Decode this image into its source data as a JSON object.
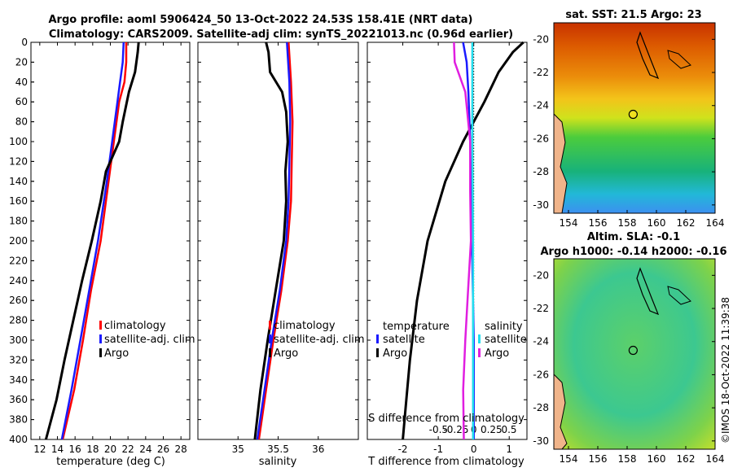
{
  "title_line1": "Argo profile: aoml 5906424_50 13-Oct-2022 24.53S 158.41E (NRT data)",
  "title_line2": "Climatology: CARS2009. Satellite-adj clim: synTS_20221013.nc (0.96d earlier)",
  "watermark": "©IMOS 18-Oct-2022 11:39:38",
  "colors": {
    "clim": "#ff0000",
    "sat": "#1a1aff",
    "argo": "#000000",
    "sat_s": "#22ddee",
    "argo_s": "#e01ee0"
  },
  "depth_ticks": [
    0,
    20,
    40,
    60,
    80,
    100,
    120,
    140,
    160,
    180,
    200,
    220,
    240,
    260,
    280,
    300,
    320,
    340,
    360,
    380,
    400
  ],
  "chart_data": [
    {
      "type": "line",
      "id": "temperature",
      "xlabel": "temperature (deg C)",
      "ylabel": "",
      "xlim": [
        11,
        29
      ],
      "ylim": [
        400,
        0
      ],
      "xticks": [
        12,
        14,
        16,
        18,
        20,
        22,
        24,
        26,
        28
      ],
      "legend": [
        "climatology",
        "satellite-adj. clim",
        "Argo"
      ],
      "series": [
        {
          "name": "climatology",
          "color": "#ff0000",
          "depth": [
            0,
            20,
            40,
            60,
            100,
            140,
            200,
            250,
            300,
            350,
            400
          ],
          "values": [
            21.8,
            21.8,
            21.6,
            21.0,
            20.4,
            19.8,
            18.9,
            17.8,
            16.9,
            15.9,
            14.6
          ]
        },
        {
          "name": "satellite-adj. clim",
          "color": "#1a1aff",
          "depth": [
            0,
            20,
            40,
            60,
            100,
            140,
            200,
            250,
            300,
            350,
            400
          ],
          "values": [
            21.5,
            21.4,
            21.1,
            20.8,
            20.2,
            19.6,
            18.6,
            17.6,
            16.6,
            15.6,
            14.5
          ]
        },
        {
          "name": "Argo",
          "color": "#000000",
          "depth": [
            0,
            10,
            30,
            50,
            80,
            100,
            130,
            160,
            200,
            240,
            280,
            320,
            360,
            400
          ],
          "values": [
            23.2,
            23.1,
            22.8,
            22.1,
            21.4,
            21.0,
            19.5,
            18.9,
            17.9,
            16.8,
            15.8,
            14.8,
            13.9,
            12.7
          ]
        }
      ]
    },
    {
      "type": "line",
      "id": "salinity",
      "xlabel": "salinity",
      "ylabel": "",
      "xlim": [
        34.5,
        36.5
      ],
      "ylim": [
        400,
        0
      ],
      "xticks": [
        35,
        35.5,
        36
      ],
      "legend": [
        "climatology",
        "satellite-adj. clim",
        "Argo"
      ],
      "series": [
        {
          "name": "climatology",
          "color": "#ff0000",
          "depth": [
            0,
            40,
            80,
            120,
            160,
            200,
            250,
            300,
            350,
            400
          ],
          "values": [
            35.63,
            35.66,
            35.68,
            35.67,
            35.66,
            35.62,
            35.54,
            35.44,
            35.35,
            35.26
          ]
        },
        {
          "name": "satellite-adj. clim",
          "color": "#1a1aff",
          "depth": [
            0,
            40,
            80,
            120,
            160,
            200,
            250,
            300,
            350,
            400
          ],
          "values": [
            35.61,
            35.64,
            35.65,
            35.64,
            35.63,
            35.6,
            35.52,
            35.42,
            35.33,
            35.24
          ]
        },
        {
          "name": "Argo",
          "color": "#000000",
          "depth": [
            0,
            10,
            30,
            50,
            70,
            100,
            130,
            160,
            200,
            250,
            300,
            350,
            400
          ],
          "values": [
            35.35,
            35.38,
            35.4,
            35.55,
            35.6,
            35.62,
            35.59,
            35.6,
            35.57,
            35.47,
            35.37,
            35.28,
            35.21
          ]
        }
      ]
    },
    {
      "type": "line",
      "id": "difference",
      "xlabel": "T difference from climatology",
      "xlabel_top": "S difference from climatology",
      "xlim": [
        -3,
        1.5
      ],
      "ylim": [
        400,
        0
      ],
      "xticks": [
        -2,
        -1,
        0,
        1
      ],
      "s_xlim": [
        -0.75,
        0.75
      ],
      "s_xticks": [
        -0.5,
        -0.25,
        0,
        0.25,
        0.5
      ],
      "s_xtick_labels": [
        "-0.5",
        "-0.25",
        "0",
        "0.25",
        "0.5"
      ],
      "legend_left_title": "temperature",
      "legend_right_title": "salinity",
      "legend_left": [
        "satellite",
        "Argo"
      ],
      "legend_right": [
        "satellite",
        "Argo"
      ],
      "series": [
        {
          "name": "T satellite",
          "color": "#1a1aff",
          "depth": [
            0,
            20,
            50,
            100,
            200,
            300,
            400
          ],
          "values": [
            -0.3,
            -0.2,
            -0.15,
            -0.1,
            -0.05,
            0.0,
            0.0
          ]
        },
        {
          "name": "T Argo",
          "color": "#000000",
          "depth": [
            0,
            10,
            30,
            60,
            100,
            140,
            200,
            260,
            320,
            360,
            400
          ],
          "values": [
            1.4,
            1.1,
            0.7,
            0.3,
            -0.3,
            -0.8,
            -1.3,
            -1.6,
            -1.8,
            -1.9,
            -2.0
          ]
        },
        {
          "name": "S satellite",
          "color": "#22ddee",
          "depth": [
            0,
            50,
            100,
            200,
            300,
            400
          ],
          "values": [
            -0.02,
            -0.02,
            -0.02,
            -0.01,
            -0.01,
            -0.01
          ]
        },
        {
          "name": "S Argo",
          "color": "#e01ee0",
          "depth": [
            0,
            20,
            50,
            100,
            150,
            200,
            250,
            300,
            350,
            400
          ],
          "values": [
            -0.28,
            -0.27,
            -0.12,
            -0.05,
            -0.05,
            -0.04,
            -0.08,
            -0.12,
            -0.15,
            -0.14
          ]
        }
      ]
    },
    {
      "type": "heatmap",
      "id": "sst_map",
      "title": "sat. SST: 21.5 Argo: 23",
      "xlim": [
        153,
        164
      ],
      "ylim": [
        -30.5,
        -19
      ],
      "xticks": [
        154,
        156,
        158,
        160,
        162,
        164
      ],
      "yticks": [
        -20,
        -22,
        -24,
        -26,
        -28,
        -30
      ],
      "argo_location": [
        158.41,
        -24.53
      ]
    },
    {
      "type": "heatmap",
      "id": "sla_map",
      "title_line1": "Altim. SLA: -0.1",
      "title_line2": "Argo h1000: -0.14 h2000: -0.16",
      "xlim": [
        153,
        164
      ],
      "ylim": [
        -30.5,
        -19
      ],
      "xticks": [
        154,
        156,
        158,
        160,
        162,
        164
      ],
      "yticks": [
        -20,
        -22,
        -24,
        -26,
        -28,
        -30
      ],
      "argo_location": [
        158.41,
        -24.53
      ]
    }
  ]
}
